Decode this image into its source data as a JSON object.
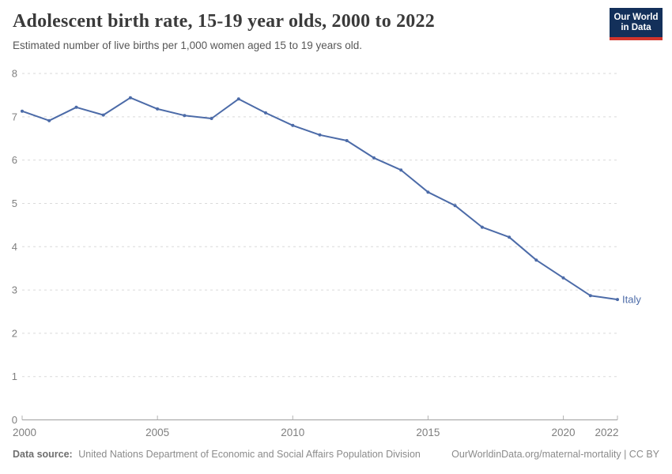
{
  "header": {
    "title": "Adolescent birth rate, 15-19 year olds, 2000 to 2022",
    "subtitle": "Estimated number of live births per 1,000 women aged 15 to 19 years old."
  },
  "logo": {
    "line1": "Our World",
    "line2": "in Data",
    "bg_color": "#13305a",
    "accent_color": "#d2352c"
  },
  "chart_data": {
    "type": "line",
    "title": "Adolescent birth rate, 15-19 year olds, 2000 to 2022",
    "xlabel": "",
    "ylabel": "",
    "x": [
      2000,
      2001,
      2002,
      2003,
      2004,
      2005,
      2006,
      2007,
      2008,
      2009,
      2010,
      2011,
      2012,
      2013,
      2014,
      2015,
      2016,
      2017,
      2018,
      2019,
      2020,
      2021,
      2022
    ],
    "series": [
      {
        "name": "Italy",
        "color": "#4c6ba8",
        "values": [
          7.13,
          6.91,
          7.22,
          7.04,
          7.44,
          7.18,
          7.03,
          6.96,
          7.41,
          7.09,
          6.8,
          6.58,
          6.45,
          6.05,
          5.77,
          5.26,
          4.95,
          4.45,
          4.22,
          3.69,
          3.28,
          2.87,
          2.78
        ]
      }
    ],
    "ylim": [
      0,
      8
    ],
    "yticks": [
      0,
      1,
      2,
      3,
      4,
      5,
      6,
      7,
      8
    ],
    "xticks": [
      2000,
      2005,
      2010,
      2015,
      2020,
      2022
    ],
    "grid": "horizontal-dashed",
    "legend": "end-of-line-label",
    "colors": {
      "gridline": "#dadada",
      "axis": "#9e9e9e",
      "tick": "#b3b3b3",
      "tick_label": "#7f7f7f"
    }
  },
  "footer": {
    "data_source_label": "Data source:",
    "data_source_text": "United Nations Department of Economic and Social Affairs Population Division",
    "attribution": "OurWorldinData.org/maternal-mortality | CC BY"
  }
}
